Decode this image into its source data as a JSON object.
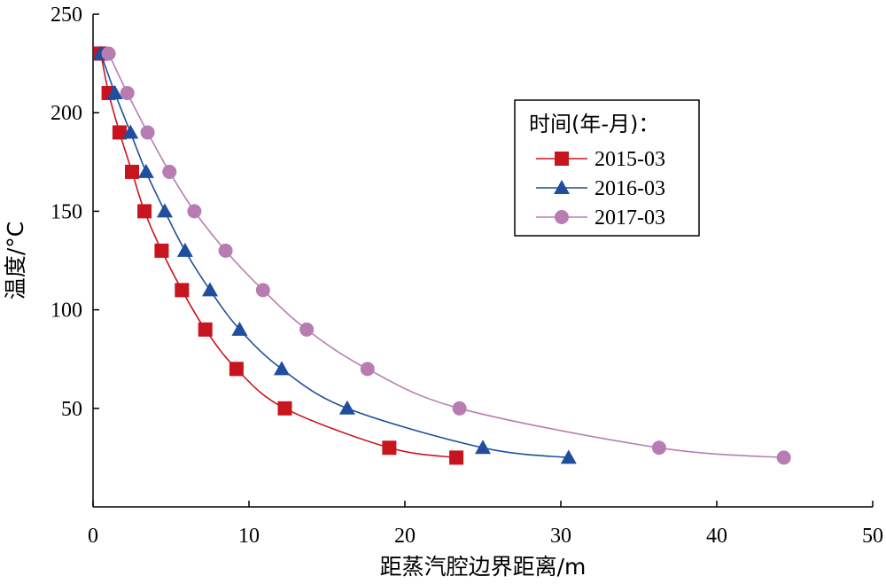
{
  "chart_data": {
    "type": "line",
    "xlabel": "距蒸汽腔边界距离/m",
    "ylabel": "温度/°C",
    "xlim": [
      0,
      50
    ],
    "ylim": [
      0,
      250
    ],
    "x_ticks": [
      0,
      10,
      20,
      30,
      40,
      50
    ],
    "y_ticks": [
      50,
      100,
      150,
      200,
      250
    ],
    "grid": false,
    "legend": {
      "title": "时间(年-月)：",
      "placement": "right"
    },
    "series": [
      {
        "name": "2015-03",
        "marker": "square",
        "color": "#c8141e",
        "points": [
          [
            0.5,
            230
          ],
          [
            1.0,
            210
          ],
          [
            1.7,
            190
          ],
          [
            2.5,
            170
          ],
          [
            3.3,
            150
          ],
          [
            4.4,
            130
          ],
          [
            5.7,
            110
          ],
          [
            7.2,
            90
          ],
          [
            9.2,
            70
          ],
          [
            12.3,
            50
          ],
          [
            19.0,
            30
          ],
          [
            23.3,
            25
          ]
        ]
      },
      {
        "name": "2016-03",
        "marker": "triangle",
        "color": "#1f4e9e",
        "points": [
          [
            0.5,
            230
          ],
          [
            1.4,
            210
          ],
          [
            2.4,
            190
          ],
          [
            3.4,
            170
          ],
          [
            4.6,
            150
          ],
          [
            5.9,
            130
          ],
          [
            7.5,
            110
          ],
          [
            9.4,
            90
          ],
          [
            12.1,
            70
          ],
          [
            16.3,
            50
          ],
          [
            25.0,
            30
          ],
          [
            30.5,
            25
          ]
        ]
      },
      {
        "name": "2017-03",
        "marker": "circle",
        "color": "#b77db3",
        "points": [
          [
            1.0,
            230
          ],
          [
            2.2,
            210
          ],
          [
            3.5,
            190
          ],
          [
            4.9,
            170
          ],
          [
            6.5,
            150
          ],
          [
            8.5,
            130
          ],
          [
            10.9,
            110
          ],
          [
            13.7,
            90
          ],
          [
            17.6,
            70
          ],
          [
            23.5,
            50
          ],
          [
            36.3,
            30
          ],
          [
            44.3,
            25
          ]
        ]
      }
    ]
  }
}
